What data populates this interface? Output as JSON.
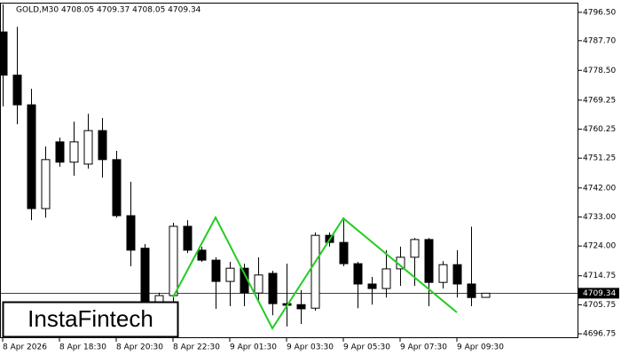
{
  "chart_data": {
    "type": "candlestick",
    "title": "GOLD,M30  4708.05 4709.37 4708.05 4709.34",
    "logo": "InstaFintech",
    "categories": [
      "8 Apr 2026",
      null,
      null,
      null,
      "8 Apr 18:30",
      null,
      null,
      null,
      "8 Apr 20:30",
      null,
      null,
      null,
      "8 Apr 22:30",
      null,
      null,
      null,
      "9 Apr 01:30",
      null,
      null,
      null,
      "9 Apr 03:30",
      null,
      null,
      null,
      "9 Apr 05:30",
      null,
      null,
      null,
      "9 Apr 07:30",
      null,
      null,
      null,
      "9 Apr 09:30",
      null,
      null
    ],
    "open": [
      4790.4,
      4777,
      4767.8,
      4735.6,
      4756.3,
      4750,
      4749.4,
      4759.8,
      4750.8,
      4733.4,
      4723.3,
      4705.5,
      4708.6,
      4730.1,
      4722.7,
      4719.6,
      4713,
      4717.1,
      4709.4,
      4715.5,
      4706.1,
      4705.8,
      4704.7,
      4727.3,
      4725.1,
      4718.5,
      4712.2,
      4710.8,
      4716.9,
      4720.5,
      4726,
      4712.7,
      4718.2,
      4712.2,
      4708.05
    ],
    "high": [
      4799,
      4792,
      4772.8,
      4754.9,
      4757.6,
      4762.6,
      4765,
      4763.7,
      4753.5,
      4743.9,
      4724.6,
      4709.5,
      4731.2,
      4732,
      4723.8,
      4720.5,
      4719.1,
      4718.5,
      4720.5,
      4716.3,
      4718.5,
      4710.3,
      4728.2,
      4728.2,
      4732,
      4719.1,
      4714.4,
      4722.7,
      4723.8,
      4726.5,
      4726.5,
      4719.3,
      4722.7,
      4730,
      4709.37
    ],
    "low": [
      4767.3,
      4761.8,
      4732,
      4732.8,
      4748.6,
      4745.8,
      4748,
      4745.2,
      4732.8,
      4717.7,
      4697.5,
      4703,
      4706.7,
      4721.8,
      4719.1,
      4704.5,
      4705.3,
      4705.3,
      4706.7,
      4702.5,
      4699,
      4699.8,
      4703.9,
      4723.8,
      4717.7,
      4704.7,
      4705.8,
      4708,
      4711.6,
      4711.6,
      4705.3,
      4710.8,
      4708,
      4705.3,
      4708.05
    ],
    "close": [
      4777,
      4767.8,
      4735.6,
      4750.8,
      4750,
      4756.3,
      4759.8,
      4750.8,
      4733.4,
      4722.7,
      4701,
      4708.6,
      4730.1,
      4722.7,
      4719.6,
      4713,
      4717.1,
      4709.4,
      4715,
      4706.1,
      4705.6,
      4704.5,
      4727.3,
      4725.1,
      4718.5,
      4712.2,
      4710.8,
      4716.9,
      4720.5,
      4726,
      4712.7,
      4718.2,
      4712.2,
      4708,
      4709.34
    ],
    "last_price": 4709.34,
    "ylim": [
      4695.4,
      4799.5
    ],
    "yticks": [
      {
        "value": 4796.5,
        "label": "4796.50"
      },
      {
        "value": 4787.7,
        "label": "4787.70"
      },
      {
        "value": 4778.5,
        "label": "4778.50"
      },
      {
        "value": 4769.25,
        "label": "4769.25"
      },
      {
        "value": 4760.25,
        "label": "4760.25"
      },
      {
        "value": 4751.25,
        "label": "4751.25"
      },
      {
        "value": 4742,
        "label": "4742.00"
      },
      {
        "value": 4733,
        "label": "4733.00"
      },
      {
        "value": 4724,
        "label": "4724.00"
      },
      {
        "value": 4714.75,
        "label": "4714.75"
      },
      {
        "value": 4705.75,
        "label": "4705.75"
      },
      {
        "value": 4696.75,
        "label": "4696.75"
      }
    ],
    "up_color": "#ffffff",
    "down_color": "#000000",
    "pattern_color": "#22cc22"
  }
}
